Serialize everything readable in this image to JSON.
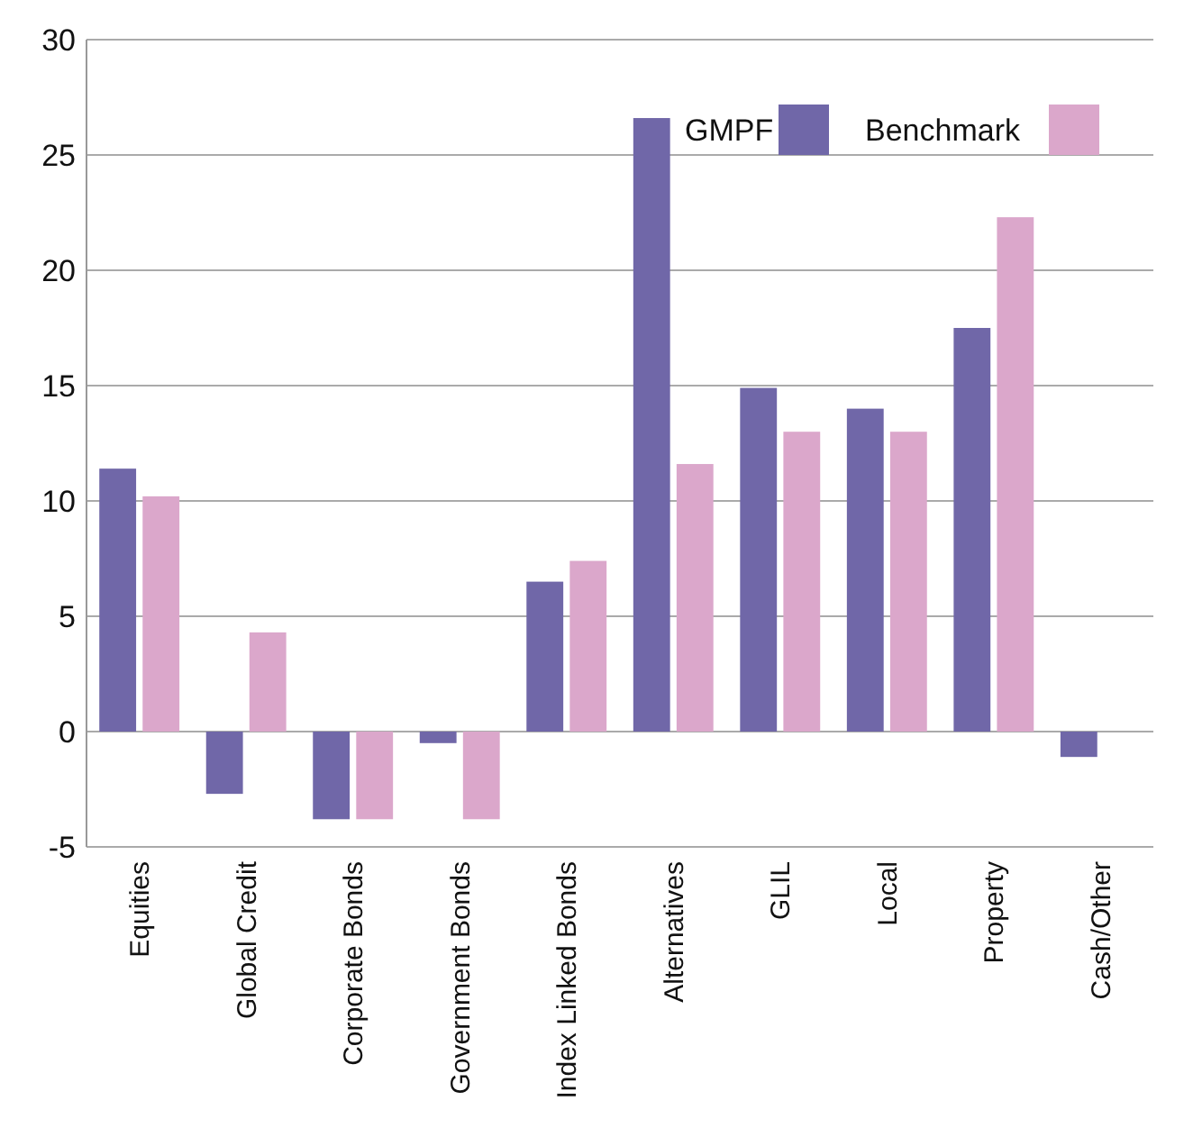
{
  "chart_data": {
    "type": "bar",
    "categories": [
      "Equities",
      "Global Credit",
      "Corporate Bonds",
      "Government Bonds",
      "Index Linked Bonds",
      "Alternatives",
      "GLIL",
      "Local",
      "Property",
      "Cash/Other"
    ],
    "series": [
      {
        "name": "GMPF",
        "color": "#7067a8",
        "values": [
          11.4,
          -2.7,
          -3.8,
          -0.5,
          6.5,
          26.6,
          14.9,
          14.0,
          17.5,
          -1.1
        ]
      },
      {
        "name": "Benchmark",
        "color": "#dba7cb",
        "values": [
          10.2,
          4.3,
          -3.8,
          -3.8,
          7.4,
          11.6,
          13.0,
          13.0,
          22.3,
          0
        ]
      }
    ],
    "ylim": [
      -5,
      30
    ],
    "yticks": [
      -5,
      0,
      5,
      10,
      15,
      20,
      25,
      30
    ],
    "grid": "y",
    "legend": "top right"
  }
}
